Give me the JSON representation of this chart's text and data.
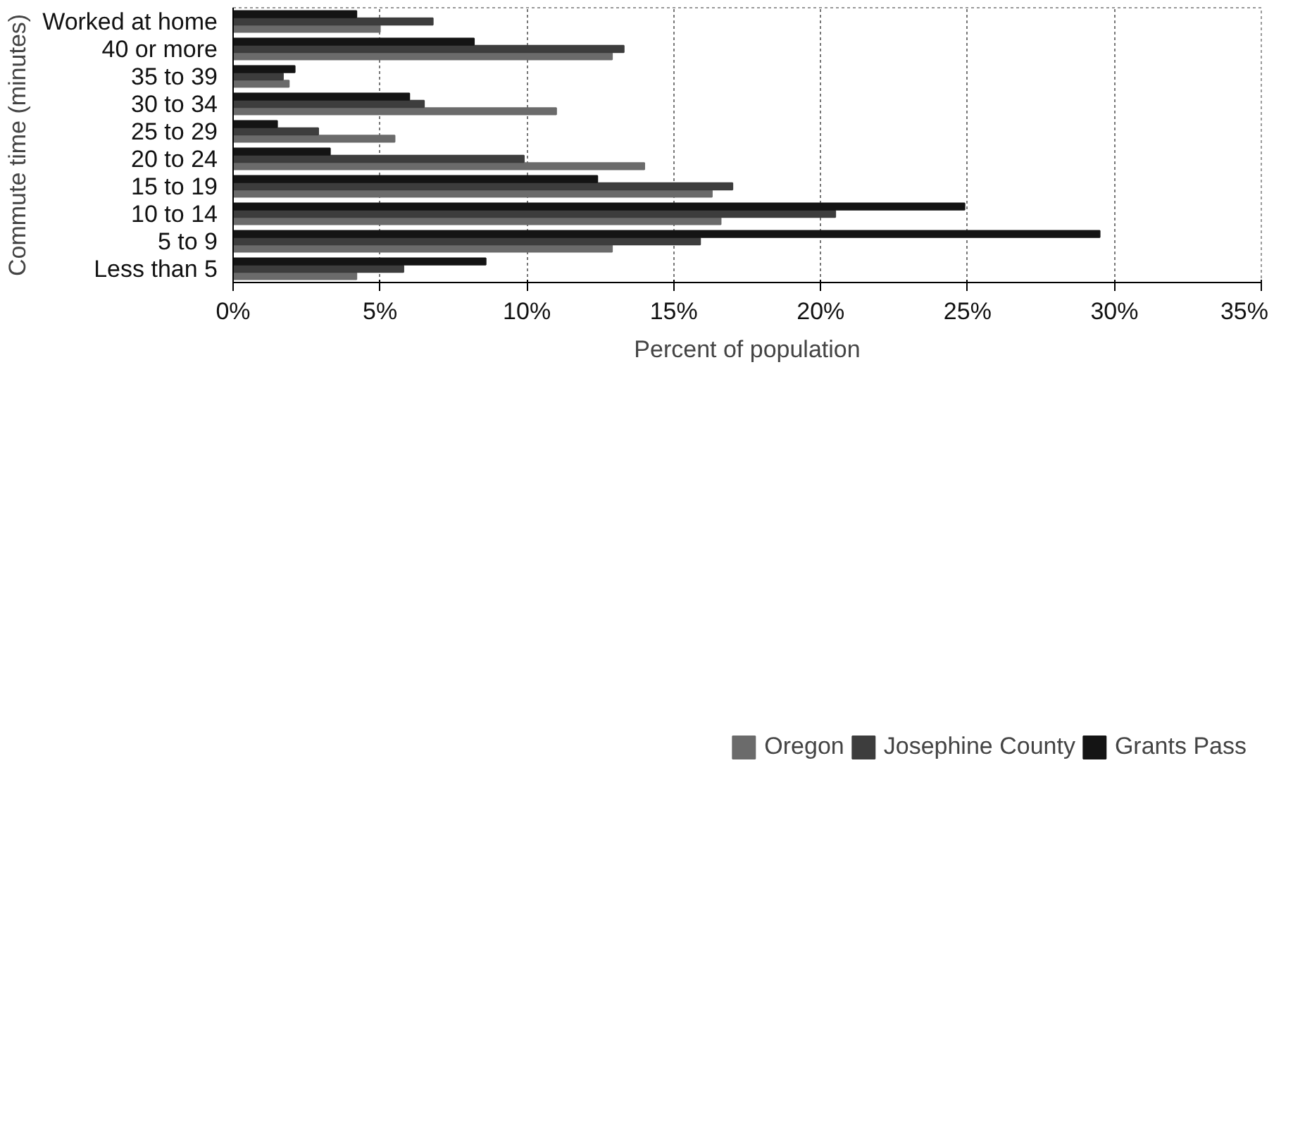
{
  "chart_data": {
    "type": "bar",
    "orientation": "horizontal",
    "xlabel": "Percent of population",
    "ylabel": "Commute time (minutes)",
    "categories": [
      "Worked at home",
      "40 or more",
      "35 to 39",
      "30 to 34",
      "25 to 29",
      "20 to 24",
      "15 to 19",
      "10 to 14",
      "5 to 9",
      "Less than 5"
    ],
    "series": [
      {
        "name": "Oregon",
        "color": "#6b6b6b",
        "values": [
          5.0,
          12.9,
          1.9,
          11.0,
          5.5,
          14.0,
          16.3,
          16.6,
          12.9,
          4.2
        ]
      },
      {
        "name": "Josephine County",
        "color": "#3d3d3d",
        "values": [
          6.8,
          13.3,
          1.7,
          6.5,
          2.9,
          9.9,
          17.0,
          20.5,
          15.9,
          5.8
        ]
      },
      {
        "name": "Grants Pass",
        "color": "#141414",
        "values": [
          4.2,
          8.2,
          2.1,
          6.0,
          1.5,
          3.3,
          12.4,
          24.9,
          29.5,
          8.6
        ]
      }
    ],
    "xlim": [
      0,
      35
    ],
    "xticks": [
      {
        "value": 0,
        "label": "0%"
      },
      {
        "value": 5,
        "label": "5%"
      },
      {
        "value": 10,
        "label": "10%"
      },
      {
        "value": 15,
        "label": "15%"
      },
      {
        "value": 20,
        "label": "20%"
      },
      {
        "value": 25,
        "label": "25%"
      },
      {
        "value": 30,
        "label": "30%"
      },
      {
        "value": 35,
        "label": "35%"
      }
    ],
    "grid": "x",
    "legend": "bottom"
  }
}
